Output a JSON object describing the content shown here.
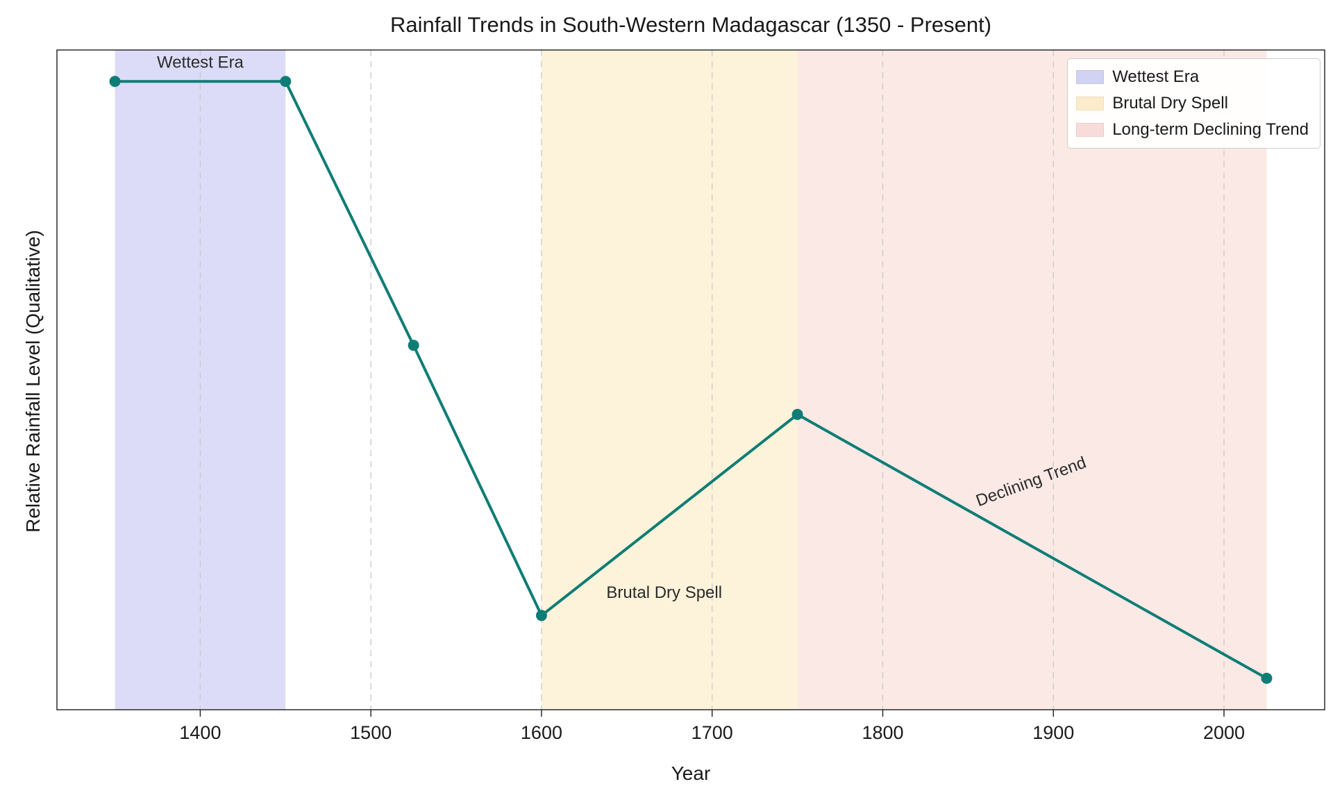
{
  "chart_data": {
    "type": "line",
    "title": "Rainfall Trends in South-Western Madagascar (1350 - Present)",
    "xlabel": "Year",
    "ylabel": "Relative Rainfall Level (Qualitative)",
    "x": [
      1350,
      1450,
      1525,
      1600,
      1750,
      2025
    ],
    "values": [
      1.0,
      1.0,
      0.58,
      0.15,
      0.47,
      0.05
    ],
    "line_color": "#0e7d75",
    "marker": "circle",
    "xlim": [
      1316,
      2059
    ],
    "ylim": [
      0,
      1.05
    ],
    "xticks": [
      1400,
      1500,
      1600,
      1700,
      1800,
      1900,
      2000
    ],
    "yticks": [],
    "grid": "vertical-dashed",
    "grid_color": "#c9c9c9",
    "frame_color": "#2b2b2b",
    "bands": [
      {
        "label": "Wettest Era",
        "x0": 1350,
        "x1": 1450,
        "fill": "#dcdcf8",
        "legend_fill": "#d2d2f3"
      },
      {
        "label": "Brutal Dry Spell",
        "x0": 1600,
        "x1": 1750,
        "fill": "#fdf3da",
        "legend_fill": "#fceccb"
      },
      {
        "label": "Long-term Declining Trend",
        "x0": 1750,
        "x1": 2025,
        "fill": "#fbe9e6",
        "legend_fill": "#f8dcda"
      }
    ],
    "annotations": [
      {
        "text": "Wettest Era",
        "x": 1400,
        "y": 1.022,
        "anchor": "middle",
        "rotation": 0
      },
      {
        "text": "Brutal Dry Spell",
        "x": 1638,
        "y": 0.178,
        "anchor": "start",
        "rotation": 0
      },
      {
        "text": "Declining Trend",
        "x": 1888,
        "y": 0.355,
        "anchor": "middle",
        "rotation": -20
      }
    ],
    "legend_position": "upper right"
  }
}
